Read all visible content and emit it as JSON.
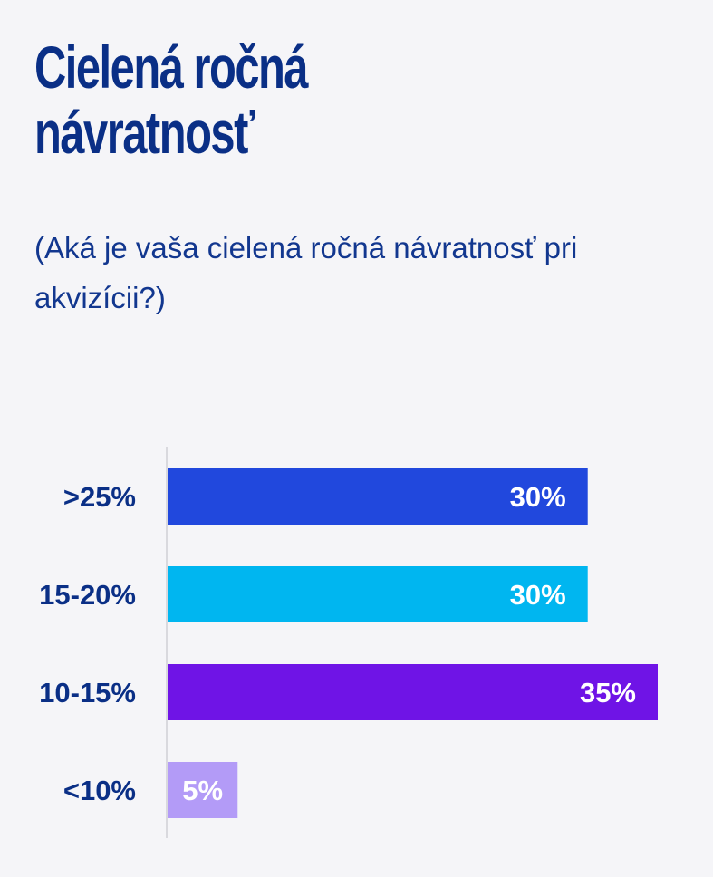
{
  "chart_data": {
    "type": "bar",
    "orientation": "horizontal",
    "title": "Cielená ročná návratnosť",
    "subtitle": "(Aká je vaša cielená ročná návratnosť pri akvizícii?)",
    "categories": [
      ">25%",
      "15-20%",
      "10-15%",
      "<10%"
    ],
    "values": [
      30,
      30,
      35,
      5
    ],
    "value_labels": [
      "30%",
      "30%",
      "35%",
      "5%"
    ],
    "colors": [
      "#2148dd",
      "#00b6f0",
      "#6f14e6",
      "#b39bf7"
    ],
    "xlim": [
      0,
      35
    ],
    "grid": false,
    "legend": "none"
  }
}
